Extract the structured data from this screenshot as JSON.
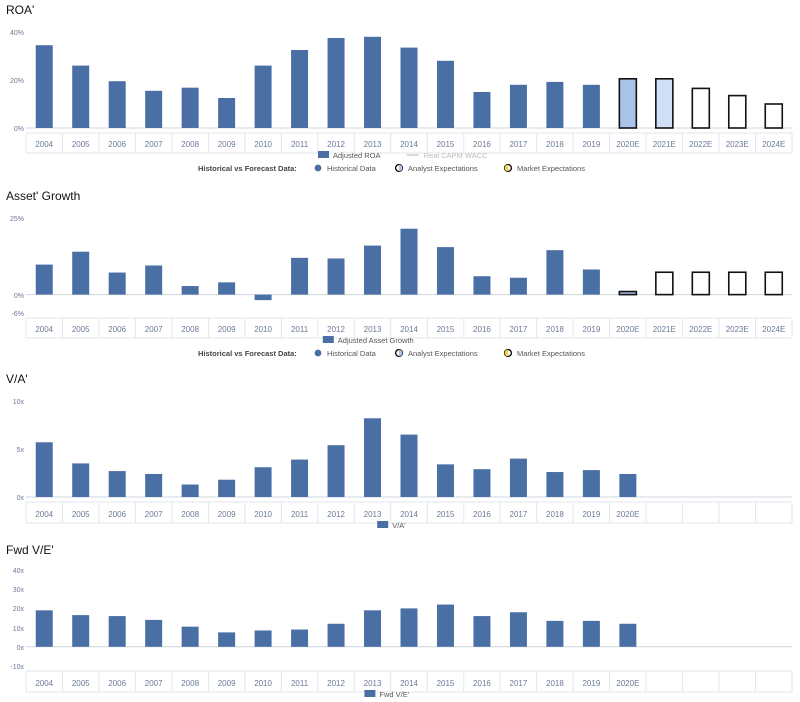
{
  "colors": {
    "bar": "#4a6fa5",
    "analyst_fill": "#a9c4e8",
    "analyst_fill_light": "#cfe0f6",
    "market_stroke": "#111111",
    "axis_text": "#6b7a99",
    "wacc_line": "#cccccc"
  },
  "chart_data": [
    {
      "id": "roa",
      "type": "bar",
      "title": "ROA'",
      "categories": [
        "2004",
        "2005",
        "2006",
        "2007",
        "2008",
        "2009",
        "2010",
        "2011",
        "2012",
        "2013",
        "2014",
        "2015",
        "2016",
        "2017",
        "2018",
        "2019",
        "2020E",
        "2021E",
        "2022E",
        "2023E",
        "2024E"
      ],
      "y_ticks": [
        "40%",
        "20%",
        "0%"
      ],
      "ylim": [
        0,
        40
      ],
      "series": [
        {
          "name": "Adjusted ROA",
          "kind": "historical",
          "values": [
            34.5,
            26,
            19.5,
            15.5,
            16.8,
            12.5,
            26,
            32.5,
            37.5,
            38,
            33.5,
            28,
            15,
            18,
            19.2,
            18,
            null,
            null,
            null,
            null,
            null
          ]
        },
        {
          "name": "Analyst Expectations",
          "kind": "analyst",
          "values": [
            null,
            null,
            null,
            null,
            null,
            null,
            null,
            null,
            null,
            null,
            null,
            null,
            null,
            null,
            null,
            null,
            20.5,
            20.5,
            null,
            null,
            null
          ]
        },
        {
          "name": "Market Expectations",
          "kind": "market",
          "values": [
            null,
            null,
            null,
            null,
            null,
            null,
            null,
            null,
            null,
            null,
            null,
            null,
            null,
            null,
            null,
            null,
            null,
            null,
            16.5,
            13.5,
            10
          ]
        }
      ],
      "legend_row1": [
        {
          "label": "Adjusted ROA",
          "type": "box"
        },
        {
          "label": "Real CAPM WACC",
          "type": "line"
        }
      ],
      "legend_row2": {
        "heading": "Historical vs Forecast Data:",
        "items": [
          "Historical Data",
          "Analyst Expectations",
          "Market Expectations"
        ]
      }
    },
    {
      "id": "growth",
      "type": "bar",
      "title": "Asset' Growth",
      "categories": [
        "2004",
        "2005",
        "2006",
        "2007",
        "2008",
        "2009",
        "2010",
        "2011",
        "2012",
        "2013",
        "2014",
        "2015",
        "2016",
        "2017",
        "2018",
        "2019",
        "2020E",
        "2021E",
        "2022E",
        "2023E",
        "2024E"
      ],
      "y_ticks": [
        "25%",
        "0%",
        "-6%"
      ],
      "ylim": [
        -6,
        25
      ],
      "series": [
        {
          "name": "Adjusted Asset Growth",
          "kind": "historical",
          "values": [
            9.8,
            14,
            7.2,
            9.5,
            2.8,
            4,
            -1.8,
            12,
            11.8,
            16,
            21.5,
            15.5,
            6,
            5.5,
            14.5,
            8.2,
            null,
            null,
            null,
            null,
            null
          ]
        },
        {
          "name": "Analyst Expectations",
          "kind": "analyst",
          "values": [
            null,
            null,
            null,
            null,
            null,
            null,
            null,
            null,
            null,
            null,
            null,
            null,
            null,
            null,
            null,
            null,
            1,
            null,
            null,
            null,
            null
          ]
        },
        {
          "name": "Market Expectations",
          "kind": "market",
          "values": [
            null,
            null,
            null,
            null,
            null,
            null,
            null,
            null,
            null,
            null,
            null,
            null,
            null,
            null,
            null,
            null,
            null,
            7.3,
            7.3,
            7.3,
            7.3
          ]
        }
      ],
      "legend_row1": [
        {
          "label": "Adjusted Asset Growth",
          "type": "box"
        }
      ],
      "legend_row2": {
        "heading": "Historical vs Forecast Data:",
        "items": [
          "Historical Data",
          "Analyst Expectations",
          "Market Expectations"
        ]
      }
    },
    {
      "id": "va",
      "type": "bar",
      "title": "V/A'",
      "categories": [
        "2004",
        "2005",
        "2006",
        "2007",
        "2008",
        "2009",
        "2010",
        "2011",
        "2012",
        "2013",
        "2014",
        "2015",
        "2016",
        "2017",
        "2018",
        "2019",
        "2020E",
        "",
        "",
        "",
        ""
      ],
      "y_ticks": [
        "10x",
        "5x",
        "0x"
      ],
      "ylim": [
        0,
        10
      ],
      "series": [
        {
          "name": "V/A'",
          "kind": "historical",
          "values": [
            5.7,
            3.5,
            2.7,
            2.4,
            1.3,
            1.8,
            3.1,
            3.9,
            5.4,
            8.2,
            6.5,
            3.4,
            2.9,
            4,
            2.6,
            2.8,
            2.4,
            null,
            null,
            null,
            null
          ]
        }
      ],
      "legend_row1": [
        {
          "label": "V/A'",
          "type": "box"
        }
      ]
    },
    {
      "id": "fwdve",
      "type": "bar",
      "title": "Fwd V/E'",
      "categories": [
        "2004",
        "2005",
        "2006",
        "2007",
        "2008",
        "2009",
        "2010",
        "2011",
        "2012",
        "2013",
        "2014",
        "2015",
        "2016",
        "2017",
        "2018",
        "2019",
        "2020E",
        "",
        "",
        "",
        ""
      ],
      "y_ticks": [
        "40x",
        "30x",
        "20x",
        "10x",
        "0x",
        "-10x"
      ],
      "ylim": [
        -10,
        40
      ],
      "series": [
        {
          "name": "Fwd V/E'",
          "kind": "historical",
          "values": [
            19,
            16.5,
            16,
            14,
            10.5,
            7.5,
            8.5,
            9,
            12,
            19,
            20,
            22,
            16,
            18,
            13.5,
            13.5,
            12,
            null,
            null,
            null,
            null
          ]
        }
      ],
      "legend_row1": [
        {
          "label": "Fwd V/E'",
          "type": "box"
        }
      ]
    }
  ]
}
